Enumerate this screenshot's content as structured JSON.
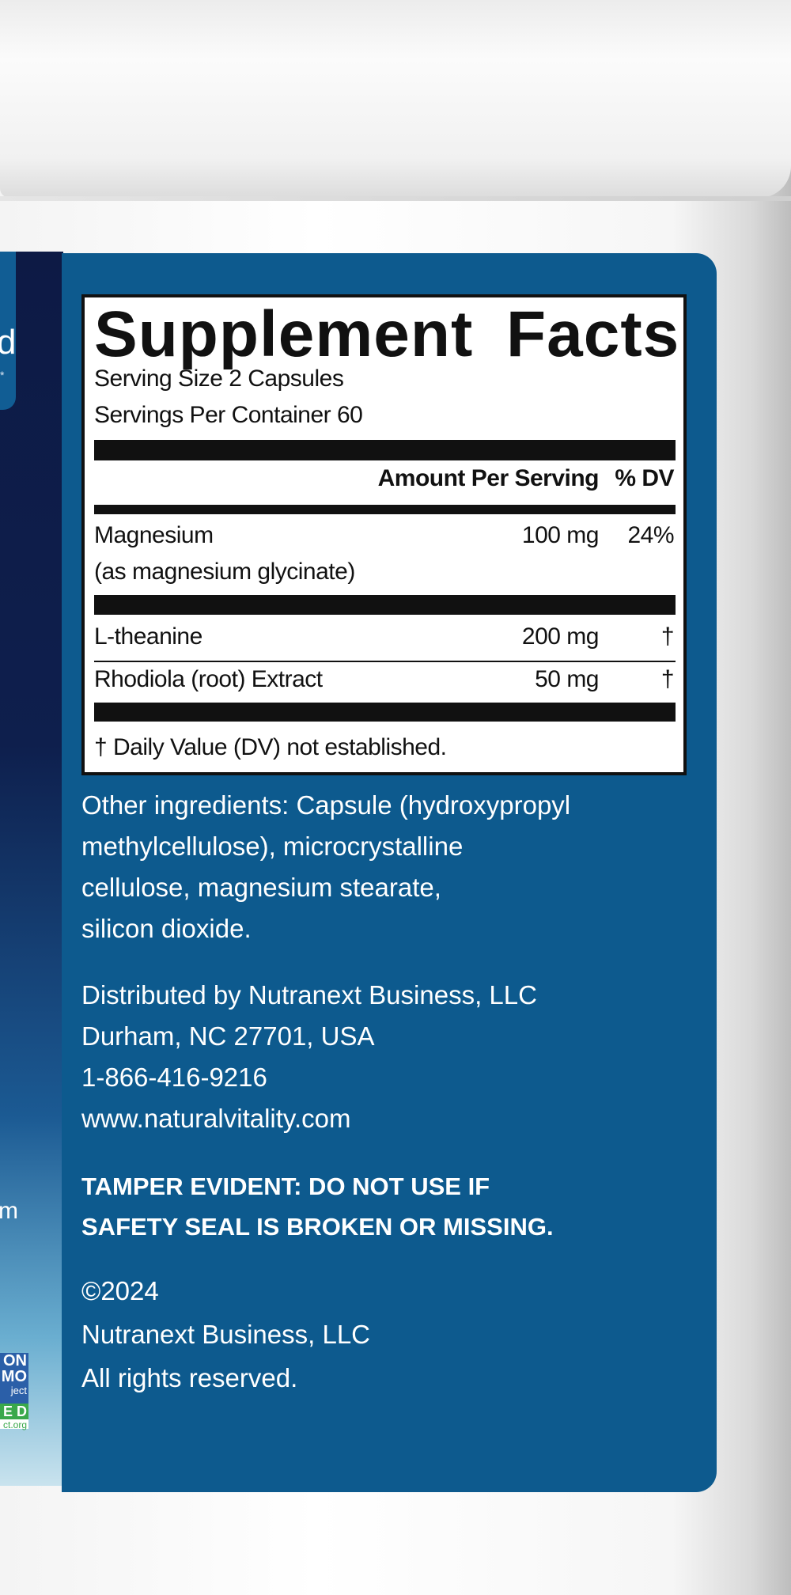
{
  "supplement_facts": {
    "title": "Supplement Facts",
    "serving_size": "Serving Size 2 Capsules",
    "servings_per_container": "Servings Per Container 60",
    "header_amount": "Amount Per Serving",
    "header_dv": "% DV",
    "rows": [
      {
        "name": "Magnesium",
        "sub": "(as magnesium glycinate)",
        "amount": "100 mg",
        "dv": "24%"
      },
      {
        "name": "L-theanine",
        "amount": "200 mg",
        "dv": "†"
      },
      {
        "name": "Rhodiola (root) Extract",
        "amount": "50 mg",
        "dv": "†"
      }
    ],
    "footnote": "† Daily Value (DV) not established."
  },
  "other_ingredients": [
    "Other ingredients: Capsule (hydroxypropyl",
    "methylcellulose), microcrystalline",
    "cellulose, magnesium stearate,",
    "silicon dioxide."
  ],
  "distributor": [
    "Distributed by Nutranext Business, LLC",
    "Durham, NC 27701, USA",
    "1-866-416-9216",
    "www.naturalvitality.com"
  ],
  "tamper": [
    "TAMPER EVIDENT: DO NOT USE IF",
    "SAFETY SEAL IS BROKEN OR MISSING."
  ],
  "copyright": [
    "©2024",
    "Nutranext Business, LLC",
    "All rights reserved."
  ],
  "left_edge": {
    "fragment_d": "d",
    "fragment_star": "*",
    "fragment_m": "m",
    "badge": [
      "ON",
      "MO",
      "ject",
      "E D",
      "ct.org"
    ]
  },
  "colors": {
    "label_blue": "#0d5a8e",
    "navy": "#0e1f4d",
    "badge_blue": "#2b5fa8",
    "badge_green": "#3aa84b"
  }
}
